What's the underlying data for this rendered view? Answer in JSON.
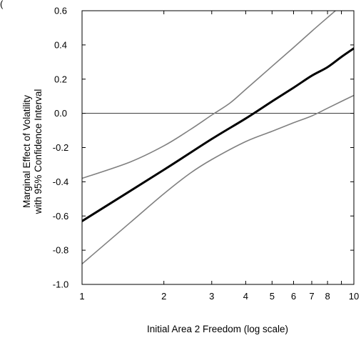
{
  "top_fragment": "(",
  "chart_data": {
    "type": "line",
    "title": "",
    "xlabel": "Initial Area 2 Freedom (log scale)",
    "ylabel": [
      "Marginal Effect of Volatility",
      "with 95% Confidence Interval"
    ],
    "x_scale": "log",
    "xlim": [
      1,
      10
    ],
    "ylim": [
      -1.0,
      0.6
    ],
    "xticks": [
      1,
      2,
      3,
      4,
      5,
      6,
      7,
      8,
      10
    ],
    "xtick_labels": [
      "1",
      "2",
      "3",
      "4",
      "5",
      "6",
      "7",
      "8",
      "10"
    ],
    "yticks": [
      0.6,
      0.4,
      0.2,
      0.0,
      -0.2,
      -0.4,
      -0.6,
      -0.8,
      -1.0
    ],
    "ytick_labels": [
      "0.6",
      "0.4",
      "0.2",
      "0.0",
      "-0.2",
      "-0.4",
      "-0.6",
      "-0.8",
      "-1.0"
    ],
    "reference_line": 0.0,
    "grid": false,
    "series": [
      {
        "role": "estimate",
        "color": "#000000",
        "width": "thick",
        "x": [
          1,
          2,
          3,
          4,
          5,
          6,
          7,
          8,
          9,
          10
        ],
        "y": [
          -0.63,
          -0.33,
          -0.15,
          -0.03,
          0.07,
          0.15,
          0.22,
          0.27,
          0.33,
          0.38
        ]
      },
      {
        "role": "upper 95% bound",
        "color": "#808080",
        "width": "thin",
        "x": [
          1,
          1.5,
          2,
          2.5,
          3,
          3.5,
          4,
          5,
          6,
          7,
          8,
          9,
          10
        ],
        "y": [
          -0.38,
          -0.285,
          -0.19,
          -0.095,
          -0.01,
          0.06,
          0.14,
          0.275,
          0.385,
          0.48,
          0.56,
          0.63,
          0.69
        ]
      },
      {
        "role": "lower 95% bound",
        "color": "#808080",
        "width": "thin",
        "x": [
          1,
          1.5,
          2,
          2.5,
          3,
          4,
          5,
          6,
          7,
          8,
          9,
          10
        ],
        "y": [
          -0.88,
          -0.64,
          -0.47,
          -0.35,
          -0.27,
          -0.165,
          -0.105,
          -0.055,
          -0.015,
          0.03,
          0.07,
          0.105
        ]
      }
    ]
  }
}
